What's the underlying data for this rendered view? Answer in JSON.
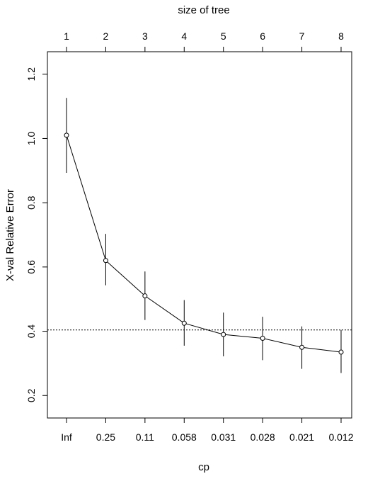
{
  "chart_data": {
    "type": "line",
    "title": "",
    "xlabel": "cp",
    "ylabel": "X-val Relative Error",
    "top_axis_label": "size of tree",
    "cp_labels": [
      "Inf",
      "0.25",
      "0.11",
      "0.058",
      "0.031",
      "0.028",
      "0.021",
      "0.012"
    ],
    "size_labels": [
      "1",
      "2",
      "3",
      "4",
      "5",
      "6",
      "7",
      "8"
    ],
    "ylim": [
      0.13,
      1.27
    ],
    "y_ticks": [
      0.2,
      0.4,
      0.6,
      0.8,
      1.0,
      1.2
    ],
    "y_tick_labels": [
      "0.2",
      "0.4",
      "0.6",
      "0.8",
      "1.0",
      "1.2"
    ],
    "series": [
      {
        "values": [
          1.01,
          0.62,
          0.51,
          0.425,
          0.39,
          0.378,
          0.35,
          0.335
        ],
        "error_low": [
          0.893,
          0.543,
          0.435,
          0.355,
          0.322,
          0.31,
          0.283,
          0.27
        ],
        "error_high": [
          1.126,
          0.703,
          0.586,
          0.497,
          0.458,
          0.445,
          0.415,
          0.404
        ]
      }
    ],
    "reference_line": 0.404,
    "grid": false,
    "colors": {
      "line": "#000000",
      "background": "#ffffff"
    }
  }
}
